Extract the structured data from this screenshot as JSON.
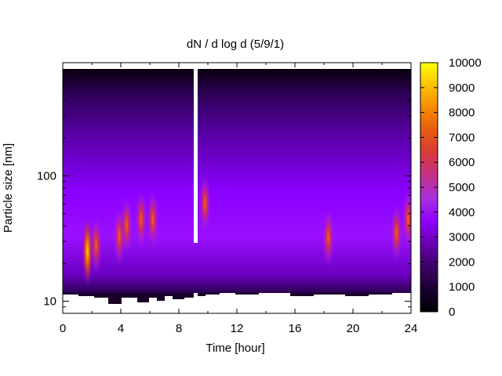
{
  "chart_data": {
    "type": "heatmap",
    "title": "dN / d log d (5/9/1)",
    "xlabel": "Time [hour]",
    "ylabel": "Particle size [nm]",
    "xlim": [
      0,
      24
    ],
    "x_ticks": [
      "0",
      "4",
      "8",
      "12",
      "16",
      "20",
      "24"
    ],
    "x_tick_values": [
      0,
      4,
      8,
      12,
      16,
      20,
      24
    ],
    "y_scale": "log",
    "ylim": [
      8,
      800
    ],
    "y_ticks": [
      "10",
      "100"
    ],
    "y_tick_values": [
      10,
      100
    ],
    "colorbar": {
      "range": [
        0,
        10000
      ],
      "ticks": [
        "0",
        "1000",
        "2000",
        "3000",
        "4000",
        "5000",
        "6000",
        "7000",
        "8000",
        "9000",
        "10000"
      ],
      "tick_values": [
        0,
        1000,
        2000,
        3000,
        4000,
        5000,
        6000,
        7000,
        8000,
        9000,
        10000
      ],
      "palette": [
        "#000000",
        "#1a0033",
        "#3d0066",
        "#6a00b0",
        "#8f00ff",
        "#a830e0",
        "#c4308a",
        "#d83a3a",
        "#e85a10",
        "#f58a00",
        "#fcc200",
        "#ffff00"
      ]
    },
    "data_gap_hours": [
      9.0,
      9.25
    ],
    "enhancements": [
      {
        "t": 1.7,
        "d": 25,
        "value": 9000
      },
      {
        "t": 2.3,
        "d": 28,
        "value": 5000
      },
      {
        "t": 3.9,
        "d": 33,
        "value": 6000
      },
      {
        "t": 4.4,
        "d": 40,
        "value": 5000
      },
      {
        "t": 5.4,
        "d": 45,
        "value": 5000
      },
      {
        "t": 6.2,
        "d": 45,
        "value": 4500
      },
      {
        "t": 9.8,
        "d": 60,
        "value": 4500
      },
      {
        "t": 18.3,
        "d": 32,
        "value": 5000
      },
      {
        "t": 23.0,
        "d": 35,
        "value": 4500
      },
      {
        "t": 23.8,
        "d": 45,
        "value": 4500
      }
    ]
  }
}
